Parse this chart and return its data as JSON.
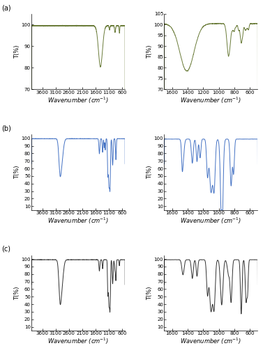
{
  "title_a": "(a)",
  "title_b": "(b)",
  "title_c": "(c)",
  "color_a": "#6b7c3a",
  "color_b": "#4472c4",
  "color_c": "#303030",
  "xlabel": "Wavenumber (cm$^{-1}$)",
  "ylabel": "T(%)",
  "background": "#ffffff",
  "tick_fontsize": 5,
  "label_fontsize": 6
}
